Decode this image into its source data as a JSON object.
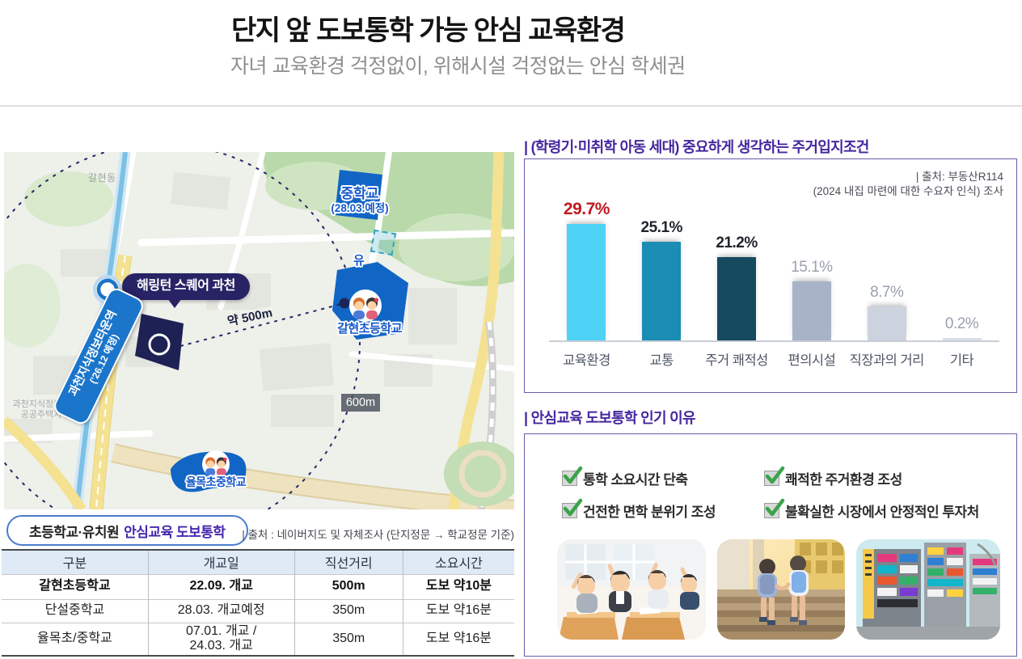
{
  "page": {
    "title": "단지 앞 도보통학 가능 안심 교육환경",
    "subtitle": "자녀 교육환경 걱정없이, 위해시설 걱정없는 안심 학세권"
  },
  "map": {
    "tooltip": "해링턴 스퀘어 과천",
    "station": {
      "line1": "과천지식정보타운역",
      "line2": "('26.12 예정)"
    },
    "middle_school": {
      "line1": "중학교",
      "line2": "(28.03.예정)"
    },
    "kindergarten_mark": "유",
    "elementary_school": "갈현초등학교",
    "yulmok_school": "율목초중학교",
    "distance_label": "약 500m",
    "radius_label": "600m",
    "area_label_1": "갈현동",
    "area_label_2": "과천지식정보타운\n공공주택지구"
  },
  "walk_section": {
    "badge_prefix": "초등학교·유치원",
    "badge_highlight": "안심교육 도보통학",
    "source": "| 출처 : 네이버지도 및 자체조사 (단지정문 → 학교정문 기준)",
    "table": {
      "headers": [
        "구분",
        "개교일",
        "직선거리",
        "소요시간"
      ],
      "rows": [
        {
          "name": "갈현초등학교",
          "open": "22.09. 개교",
          "distance": "500m",
          "time": "도보 약10분"
        },
        {
          "name": "단설중학교",
          "open": "28.03. 개교예정",
          "distance": "350m",
          "time": "도보 약16분"
        },
        {
          "name": "율목초/중학교",
          "open": "07.01. 개교 /\n24.03. 개교",
          "distance": "350m",
          "time": "도보 약16분"
        }
      ]
    }
  },
  "chart_section": {
    "heading": "| (학령기·미취학 아동 세대) 중요하게 생각하는 주거입지조건",
    "source_line1": "| 출처: 부동산R114",
    "source_line2": "(2024 내집 마련에 대한 수요자 인식) 조사"
  },
  "chart_data": {
    "type": "bar",
    "title": "(학령기·미취학 아동 세대) 중요하게 생각하는 주거입지조건",
    "source": "출처: 부동산R114 (2024 내집 마련에 대한 수요자 인식) 조사",
    "categories": [
      "교육환경",
      "교통",
      "주거 쾌적성",
      "편의시설",
      "직장과의 거리",
      "기타"
    ],
    "values": [
      29.7,
      25.1,
      21.2,
      15.1,
      8.7,
      0.2
    ],
    "value_labels": [
      "29.7%",
      "25.1%",
      "21.2%",
      "15.1%",
      "8.7%",
      "0.2%"
    ],
    "bar_colors": [
      "#4ed2f5",
      "#1b8cb4",
      "#154a60",
      "#a9b3c7",
      "#ccd3de",
      "#dadfe7"
    ],
    "label_colors": [
      "#c01920",
      "#20242b",
      "#20242b",
      "#9aa1ae",
      "#9aa1ae",
      "#9aa1ae"
    ],
    "highlight_index": 0,
    "unit": "%",
    "ylim": [
      0,
      32
    ],
    "grid": false,
    "legend": null
  },
  "reasons_section": {
    "heading": "| 안심교육 도보통학 인기 이유",
    "items": [
      "통학 소요시간 단축",
      "쾌적한 주거환경 조성",
      "건전한 면학 분위기 조성",
      "불확실한 시장에서 안정적인 투자처"
    ],
    "photos": [
      "classroom-photo",
      "walk-to-school-photo",
      "academy-street-photo"
    ]
  },
  "colors": {
    "accent_purple": "#45279f",
    "panel_border": "#6a5ca8",
    "badge_border": "#4a7ccb",
    "school_blue": "#1165c5",
    "complex_navy": "#1d2153",
    "highlight_red": "#c01920",
    "check_green": "#3aa44a"
  }
}
